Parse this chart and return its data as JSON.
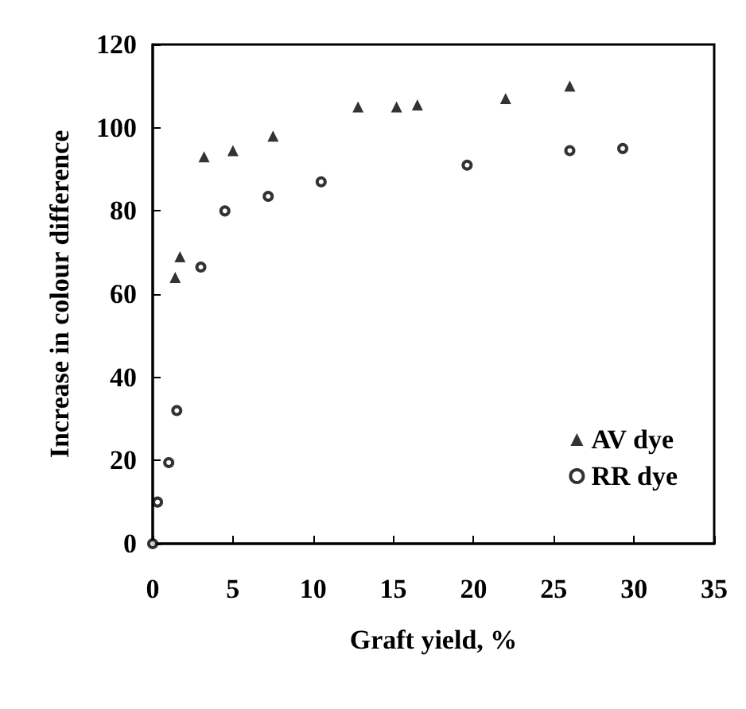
{
  "chart_data": {
    "type": "scatter",
    "xlabel": "Graft yield, %",
    "ylabel": "Increase in colour difference",
    "xlim": [
      0,
      35
    ],
    "xticks": [
      0,
      5,
      10,
      15,
      20,
      25,
      30,
      35
    ],
    "ylim": [
      0,
      120
    ],
    "yticks": [
      0,
      20,
      40,
      60,
      80,
      100,
      120
    ],
    "grid": false,
    "legend": "bottom right",
    "series": [
      {
        "name": "AV dye",
        "color": "#000000",
        "marker": "triangle",
        "x": [
          1.4,
          1.7,
          3.2,
          5,
          7.5,
          12.8,
          15.2,
          16.5,
          22,
          26
        ],
        "values": [
          64,
          69,
          93,
          94.5,
          98,
          105,
          105,
          105.5,
          107,
          110
        ]
      },
      {
        "name": "RR dye",
        "color": "#000000",
        "marker": "circle",
        "x": [
          0,
          0.3,
          1,
          1.5,
          3,
          4.5,
          7.2,
          10.5,
          19.6,
          26,
          29.3
        ],
        "values": [
          0,
          10,
          19.5,
          32,
          66.5,
          80,
          83.5,
          87,
          91,
          94.5,
          95
        ]
      }
    ]
  }
}
